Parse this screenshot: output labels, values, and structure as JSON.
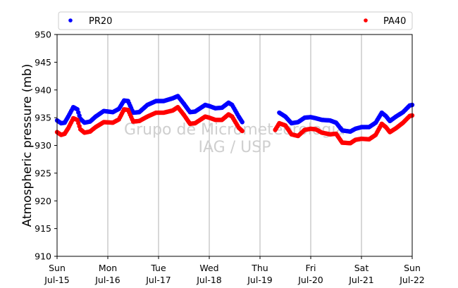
{
  "chart_data": {
    "type": "scatter",
    "ylabel": "Atmospheric pressure (mb)",
    "ylim": [
      910,
      950
    ],
    "yticks": [
      910,
      915,
      920,
      925,
      930,
      935,
      940,
      945,
      950
    ],
    "xlim": [
      0,
      7
    ],
    "x_unit": "days since Sun Jul-15 00:00",
    "xticks": [
      {
        "x": 0,
        "day": "Sun",
        "date": "Jul-15"
      },
      {
        "x": 1,
        "day": "Mon",
        "date": "Jul-16"
      },
      {
        "x": 2,
        "day": "Tue",
        "date": "Jul-17"
      },
      {
        "x": 3,
        "day": "Wed",
        "date": "Jul-18"
      },
      {
        "x": 4,
        "day": "Thu",
        "date": "Jul-19"
      },
      {
        "x": 5,
        "day": "Fri",
        "date": "Jul-20"
      },
      {
        "x": 6,
        "day": "Sat",
        "date": "Jul-21"
      },
      {
        "x": 7,
        "day": "Sun",
        "date": "Jul-22"
      }
    ],
    "grid": "vertical",
    "legend_placement": "top, outside plot",
    "watermark": [
      "Grupo de Micrometeorologia",
      "IAG / USP"
    ],
    "series": [
      {
        "name": "PR20",
        "color": "#0000ff",
        "segments": [
          [
            [
              0.0,
              934.5
            ],
            [
              0.08,
              934.0
            ],
            [
              0.15,
              934.1
            ],
            [
              0.22,
              935.2
            ],
            [
              0.32,
              936.9
            ],
            [
              0.4,
              936.5
            ],
            [
              0.46,
              934.8
            ],
            [
              0.54,
              934.1
            ],
            [
              0.65,
              934.3
            ],
            [
              0.76,
              935.2
            ],
            [
              0.92,
              936.2
            ],
            [
              1.1,
              936.0
            ],
            [
              1.22,
              936.6
            ],
            [
              1.32,
              938.1
            ],
            [
              1.4,
              938.0
            ],
            [
              1.5,
              935.9
            ],
            [
              1.62,
              936.0
            ],
            [
              1.78,
              937.3
            ],
            [
              1.95,
              938.0
            ],
            [
              2.1,
              938.0
            ],
            [
              2.28,
              938.5
            ],
            [
              2.38,
              938.9
            ],
            [
              2.5,
              937.5
            ],
            [
              2.62,
              936.0
            ],
            [
              2.72,
              936.1
            ],
            [
              2.82,
              936.7
            ],
            [
              2.92,
              937.3
            ],
            [
              3.0,
              937.1
            ],
            [
              3.12,
              936.7
            ],
            [
              3.25,
              936.8
            ],
            [
              3.38,
              937.7
            ],
            [
              3.45,
              937.3
            ],
            [
              3.58,
              935.2
            ],
            [
              3.65,
              934.2
            ]
          ],
          [
            [
              4.38,
              935.9
            ],
            [
              4.5,
              935.2
            ],
            [
              4.62,
              934.0
            ],
            [
              4.75,
              934.2
            ],
            [
              4.88,
              935.0
            ],
            [
              5.0,
              935.1
            ],
            [
              5.1,
              934.9
            ],
            [
              5.22,
              934.6
            ],
            [
              5.38,
              934.5
            ],
            [
              5.5,
              934.1
            ],
            [
              5.62,
              932.7
            ],
            [
              5.78,
              932.5
            ],
            [
              5.88,
              933.0
            ],
            [
              6.0,
              933.3
            ],
            [
              6.15,
              933.3
            ],
            [
              6.28,
              934.1
            ],
            [
              6.4,
              935.9
            ],
            [
              6.48,
              935.3
            ],
            [
              6.56,
              934.4
            ],
            [
              6.68,
              935.2
            ],
            [
              6.82,
              936.0
            ],
            [
              6.95,
              937.2
            ],
            [
              7.0,
              937.3
            ]
          ]
        ]
      },
      {
        "name": "PA40",
        "color": "#ff0000",
        "segments": [
          [
            [
              0.0,
              932.4
            ],
            [
              0.08,
              931.9
            ],
            [
              0.15,
              932.1
            ],
            [
              0.22,
              933.1
            ],
            [
              0.32,
              934.9
            ],
            [
              0.4,
              934.6
            ],
            [
              0.46,
              932.9
            ],
            [
              0.54,
              932.3
            ],
            [
              0.65,
              932.5
            ],
            [
              0.76,
              933.3
            ],
            [
              0.92,
              934.2
            ],
            [
              1.1,
              934.1
            ],
            [
              1.22,
              934.7
            ],
            [
              1.32,
              936.5
            ],
            [
              1.4,
              936.4
            ],
            [
              1.5,
              934.3
            ],
            [
              1.62,
              934.4
            ],
            [
              1.78,
              935.2
            ],
            [
              1.95,
              935.9
            ],
            [
              2.1,
              935.9
            ],
            [
              2.28,
              936.3
            ],
            [
              2.38,
              936.9
            ],
            [
              2.5,
              935.5
            ],
            [
              2.62,
              933.9
            ],
            [
              2.72,
              934.0
            ],
            [
              2.82,
              934.6
            ],
            [
              2.92,
              935.2
            ],
            [
              3.0,
              935.0
            ],
            [
              3.12,
              934.6
            ],
            [
              3.25,
              934.6
            ],
            [
              3.38,
              935.6
            ],
            [
              3.45,
              935.2
            ],
            [
              3.58,
              933.2
            ],
            [
              3.65,
              932.6
            ]
          ],
          [
            [
              4.3,
              932.8
            ],
            [
              4.38,
              934.0
            ],
            [
              4.5,
              933.6
            ],
            [
              4.62,
              932.0
            ],
            [
              4.75,
              931.7
            ],
            [
              4.88,
              932.8
            ],
            [
              5.0,
              933.0
            ],
            [
              5.1,
              932.9
            ],
            [
              5.22,
              932.3
            ],
            [
              5.38,
              932.0
            ],
            [
              5.5,
              932.1
            ],
            [
              5.62,
              930.5
            ],
            [
              5.78,
              930.4
            ],
            [
              5.88,
              931.0
            ],
            [
              6.0,
              931.2
            ],
            [
              6.15,
              931.1
            ],
            [
              6.28,
              931.9
            ],
            [
              6.4,
              933.9
            ],
            [
              6.48,
              933.3
            ],
            [
              6.56,
              932.4
            ],
            [
              6.68,
              933.1
            ],
            [
              6.82,
              934.1
            ],
            [
              6.95,
              935.3
            ],
            [
              7.0,
              935.4
            ]
          ]
        ]
      }
    ]
  }
}
